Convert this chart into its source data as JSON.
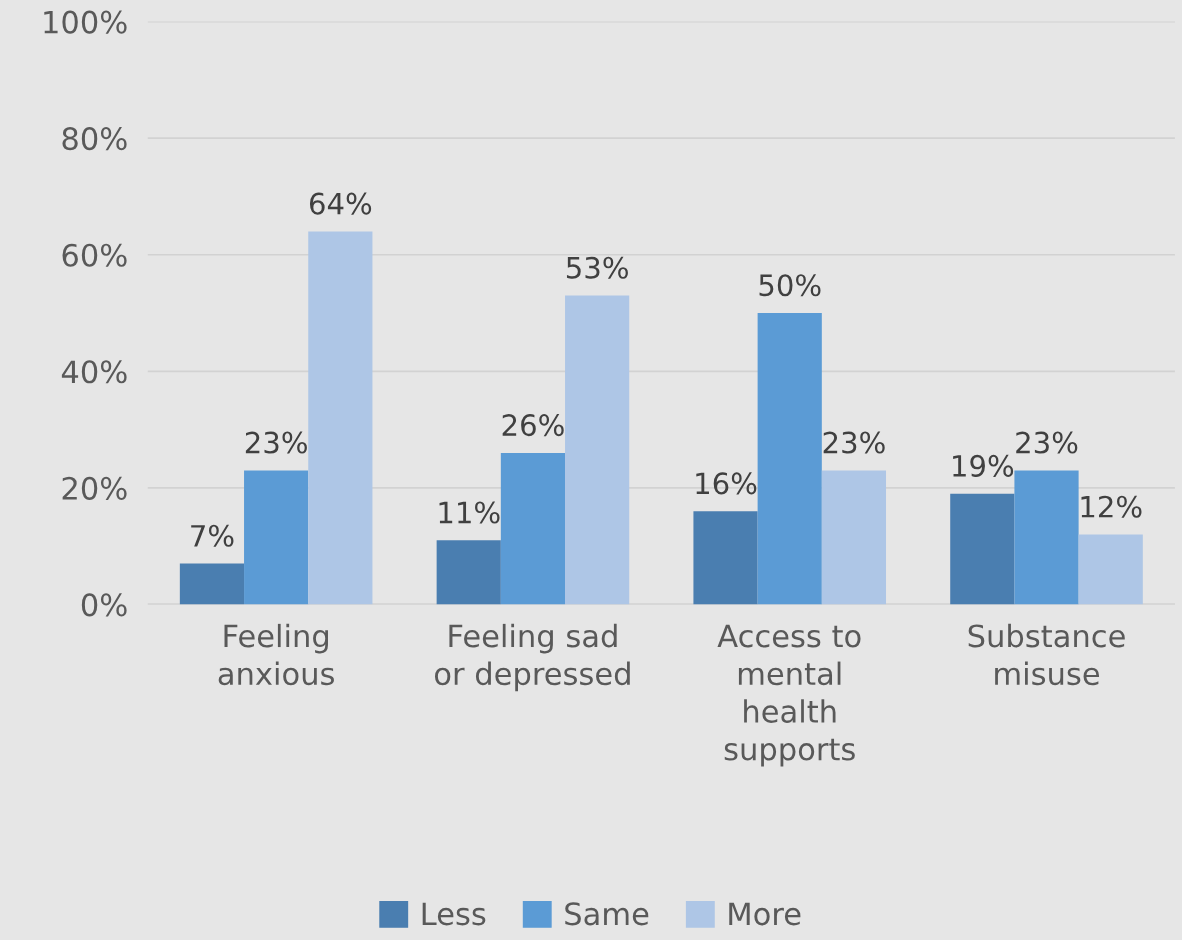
{
  "chart_data": {
    "type": "bar",
    "categories": [
      "Feeling anxious",
      "Feeling sad or depressed",
      "Access to mental health supports",
      "Substance misuse"
    ],
    "series": [
      {
        "name": "Less",
        "color": "#4a7eb0",
        "values": [
          7,
          11,
          16,
          19
        ],
        "value_labels": [
          "7%",
          "11%",
          "16%",
          "19%"
        ]
      },
      {
        "name": "Same",
        "color": "#5b9bd5",
        "values": [
          23,
          26,
          50,
          23
        ],
        "value_labels": [
          "23%",
          "26%",
          "50%",
          "23%"
        ]
      },
      {
        "name": "More",
        "color": "#aec6e6",
        "values": [
          64,
          53,
          23,
          12
        ],
        "value_labels": [
          "64%",
          "53%",
          "23%",
          "12%"
        ]
      }
    ],
    "ylim": [
      0,
      100
    ],
    "yticks": [
      {
        "value": 0,
        "label": "0%"
      },
      {
        "value": 20,
        "label": "20%"
      },
      {
        "value": 40,
        "label": "40%"
      },
      {
        "value": 60,
        "label": "60%"
      },
      {
        "value": 80,
        "label": "80%"
      },
      {
        "value": 100,
        "label": "100%"
      }
    ],
    "grid": "y",
    "legend": "bottom"
  }
}
